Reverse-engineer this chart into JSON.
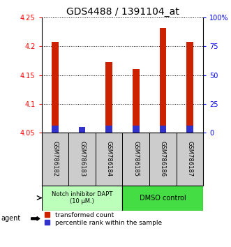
{
  "title": "GDS4488 / 1391104_at",
  "samples": [
    "GSM786182",
    "GSM786183",
    "GSM786184",
    "GSM786185",
    "GSM786186",
    "GSM786187"
  ],
  "red_values": [
    4.207,
    4.052,
    4.172,
    4.16,
    4.232,
    4.207
  ],
  "blue_values": [
    4.062,
    4.06,
    4.062,
    4.062,
    4.063,
    4.063
  ],
  "y_min": 4.05,
  "y_max": 4.25,
  "y_ticks_red": [
    4.05,
    4.1,
    4.15,
    4.2,
    4.25
  ],
  "y_ticks_blue": [
    0,
    25,
    50,
    75,
    100
  ],
  "bar_color_red": "#cc2200",
  "bar_color_blue": "#3333cc",
  "bar_width": 0.25,
  "group1_color": "#bbffbb",
  "group2_color": "#44dd44",
  "legend_red": "transformed count",
  "legend_blue": "percentile rank within the sample",
  "agent_label": "agent",
  "title_fontsize": 10,
  "tick_fontsize": 7,
  "sample_fontsize": 6,
  "legend_fontsize": 6.5,
  "background_color": "#ffffff",
  "plot_bg": "#ffffff",
  "grid_color": "#000000",
  "sample_bg": "#cccccc"
}
